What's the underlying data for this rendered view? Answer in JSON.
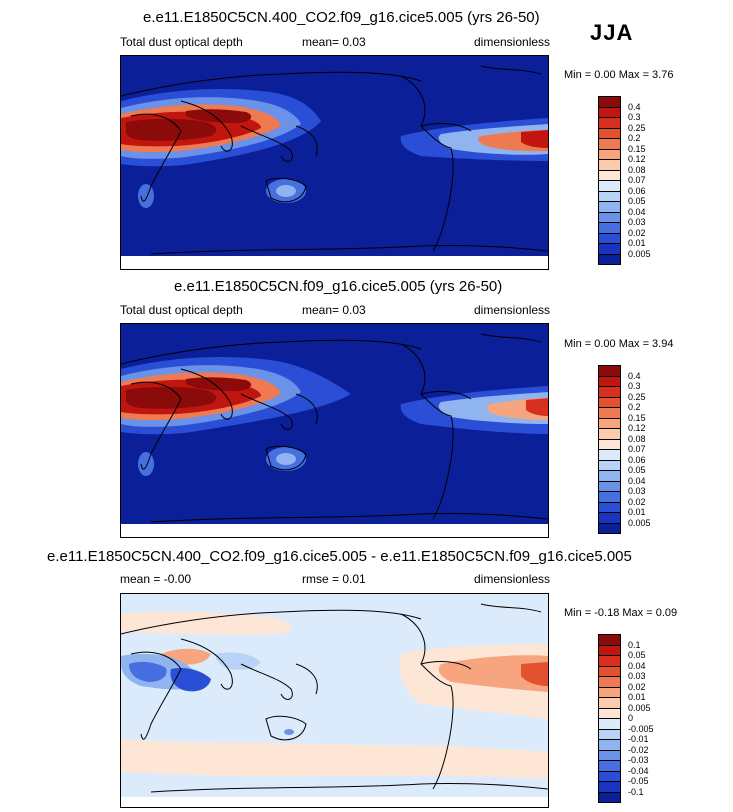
{
  "season": "JJA",
  "panels": [
    {
      "title": "e.e11.E1850C5CN.400_CO2.f09_g16.cice5.005 (yrs 26-50)",
      "left_label": "Total dust optical depth",
      "mid_label": "mean=   0.03",
      "right_label": "dimensionless",
      "minmax": "Min =   0.00 Max =   3.76",
      "colorbar": {
        "labels": [
          "0.4",
          "0.3",
          "0.25",
          "0.2",
          "0.15",
          "0.12",
          "0.08",
          "0.07",
          "0.06",
          "0.05",
          "0.04",
          "0.03",
          "0.02",
          "0.01",
          "0.005"
        ],
        "colors": [
          "#8b0a0a",
          "#c0160f",
          "#d7301f",
          "#e4512e",
          "#ef7a52",
          "#f6a57f",
          "#fbcbac",
          "#fde6d5",
          "#dcebfb",
          "#b8d3f6",
          "#8fb4ef",
          "#6a92e8",
          "#4670e0",
          "#2a4fd6",
          "#1a34c2",
          "#0b1f99"
        ]
      }
    },
    {
      "title": "e.e11.E1850C5CN.f09_g16.cice5.005 (yrs 26-50)",
      "left_label": "Total dust optical depth",
      "mid_label": "mean=   0.03",
      "right_label": "dimensionless",
      "minmax": "Min =   0.00 Max =   3.94",
      "colorbar": {
        "labels": [
          "0.4",
          "0.3",
          "0.25",
          "0.2",
          "0.15",
          "0.12",
          "0.08",
          "0.07",
          "0.06",
          "0.05",
          "0.04",
          "0.03",
          "0.02",
          "0.01",
          "0.005"
        ],
        "colors": [
          "#8b0a0a",
          "#c0160f",
          "#d7301f",
          "#e4512e",
          "#ef7a52",
          "#f6a57f",
          "#fbcbac",
          "#fde6d5",
          "#dcebfb",
          "#b8d3f6",
          "#8fb4ef",
          "#6a92e8",
          "#4670e0",
          "#2a4fd6",
          "#1a34c2",
          "#0b1f99"
        ]
      }
    },
    {
      "title": "e.e11.E1850C5CN.400_CO2.f09_g16.cice5.005 - e.e11.E1850C5CN.f09_g16.cice5.005",
      "left_label": "mean = -0.00",
      "mid_label": "rmse =  0.01",
      "right_label": "dimensionless",
      "minmax": "Min =  -0.18 Max =   0.09",
      "colorbar": {
        "labels": [
          "0.1",
          "0.05",
          "0.04",
          "0.03",
          "0.02",
          "0.01",
          "0.005",
          "0",
          "-0.005",
          "-0.01",
          "-0.02",
          "-0.03",
          "-0.04",
          "-0.05",
          "-0.1"
        ],
        "colors": [
          "#8b0a0a",
          "#c0160f",
          "#d7301f",
          "#e4512e",
          "#ef7a52",
          "#f6a57f",
          "#fbcbac",
          "#fde6d5",
          "#dcebfb",
          "#b8d3f6",
          "#8fb4ef",
          "#6a92e8",
          "#4670e0",
          "#2a4fd6",
          "#1a34c2",
          "#0b1f99"
        ]
      }
    }
  ],
  "chart_data": [
    {
      "type": "heatmap",
      "title": "e.e11.E1850C5CN.400_CO2.f09_g16.cice5.005 (yrs 26-50)",
      "variable": "Total dust optical depth",
      "units": "dimensionless",
      "mean": 0.03,
      "min": 0.0,
      "max": 3.76,
      "levels": [
        0.005,
        0.01,
        0.02,
        0.03,
        0.04,
        0.05,
        0.06,
        0.07,
        0.08,
        0.12,
        0.15,
        0.2,
        0.25,
        0.3,
        0.4
      ]
    },
    {
      "type": "heatmap",
      "title": "e.e11.E1850C5CN.f09_g16.cice5.005 (yrs 26-50)",
      "variable": "Total dust optical depth",
      "units": "dimensionless",
      "mean": 0.03,
      "min": 0.0,
      "max": 3.94,
      "levels": [
        0.005,
        0.01,
        0.02,
        0.03,
        0.04,
        0.05,
        0.06,
        0.07,
        0.08,
        0.12,
        0.15,
        0.2,
        0.25,
        0.3,
        0.4
      ]
    },
    {
      "type": "heatmap",
      "title": "e.e11.E1850C5CN.400_CO2.f09_g16.cice5.005 - e.e11.E1850C5CN.f09_g16.cice5.005",
      "units": "dimensionless",
      "mean": -0.0,
      "rmse": 0.01,
      "min": -0.18,
      "max": 0.09,
      "levels": [
        -0.1,
        -0.05,
        -0.04,
        -0.03,
        -0.02,
        -0.01,
        -0.005,
        0,
        0.005,
        0.01,
        0.02,
        0.03,
        0.04,
        0.05,
        0.1
      ]
    }
  ]
}
